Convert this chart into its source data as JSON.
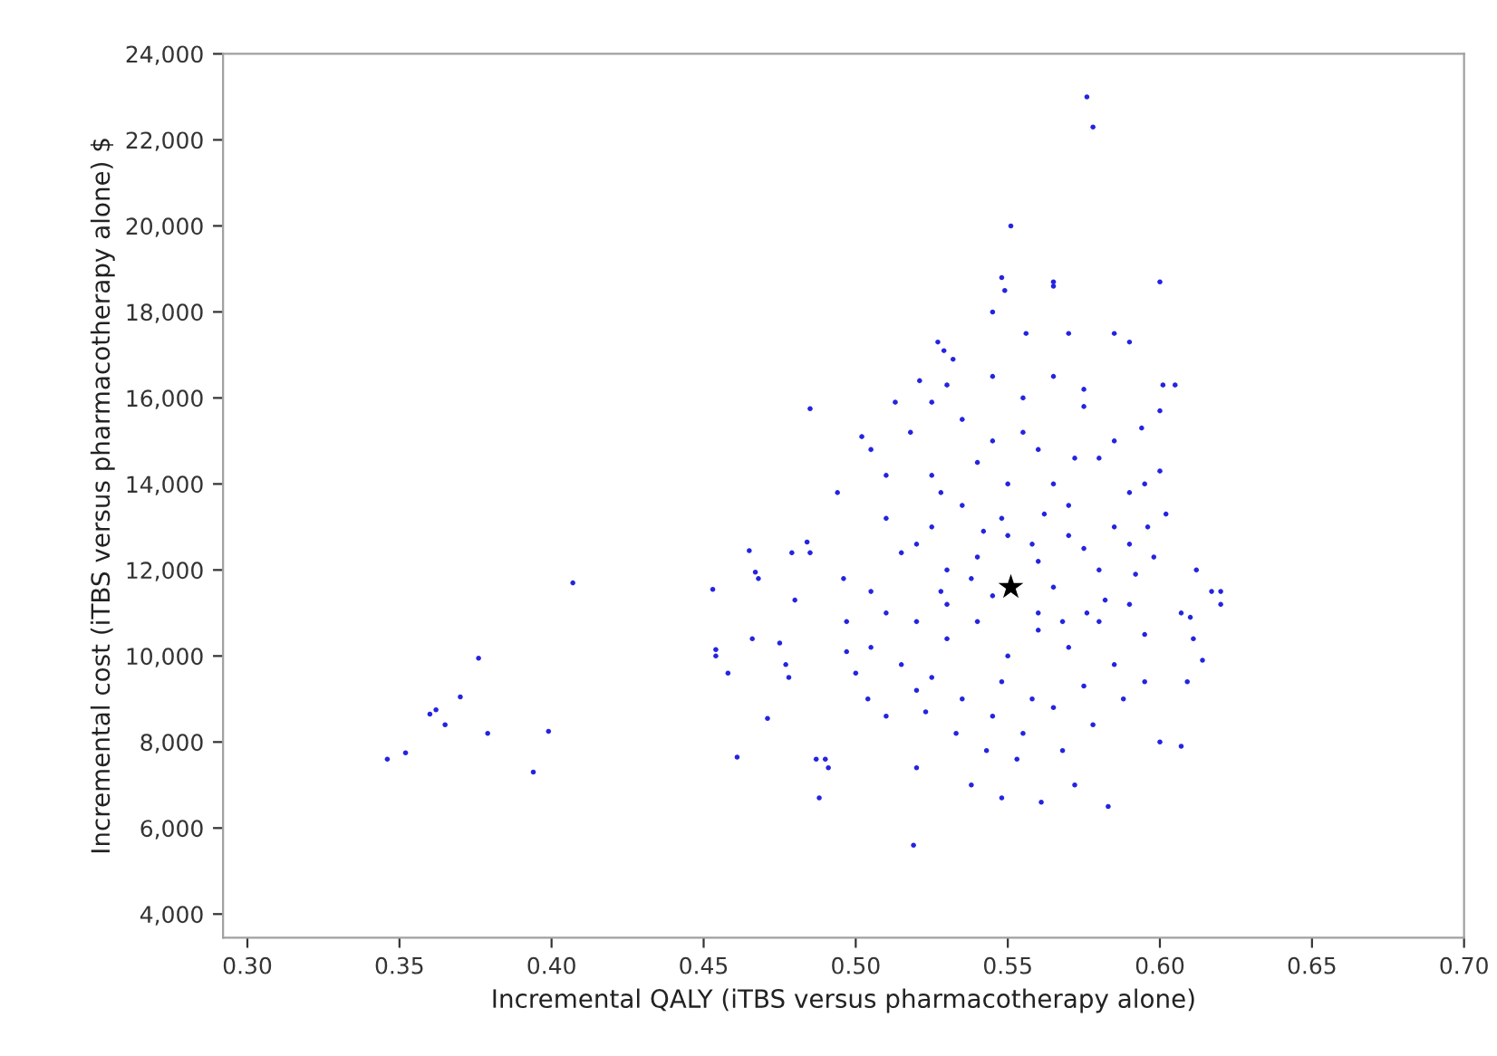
{
  "chart_data": {
    "type": "scatter",
    "xlabel": "Incremental QALY (iTBS versus pharmacotherapy alone)",
    "ylabel": "Incremental cost (iTBS versus pharmacotherapy alone) $",
    "xlim": [
      0.292,
      0.7
    ],
    "ylim": [
      3450,
      24000
    ],
    "xticks": [
      {
        "value": 0.3,
        "label": "0.30"
      },
      {
        "value": 0.35,
        "label": "0.35"
      },
      {
        "value": 0.4,
        "label": "0.40"
      },
      {
        "value": 0.45,
        "label": "0.45"
      },
      {
        "value": 0.5,
        "label": "0.50"
      },
      {
        "value": 0.55,
        "label": "0.55"
      },
      {
        "value": 0.6,
        "label": "0.60"
      },
      {
        "value": 0.65,
        "label": "0.65"
      },
      {
        "value": 0.7,
        "label": "0.70"
      }
    ],
    "yticks": [
      {
        "value": 4000,
        "label": "4,000"
      },
      {
        "value": 6000,
        "label": "6,000"
      },
      {
        "value": 8000,
        "label": "8,000"
      },
      {
        "value": 10000,
        "label": "10,000"
      },
      {
        "value": 12000,
        "label": "12,000"
      },
      {
        "value": 14000,
        "label": "14,000"
      },
      {
        "value": 16000,
        "label": "16,000"
      },
      {
        "value": 18000,
        "label": "18,000"
      },
      {
        "value": 20000,
        "label": "20,000"
      },
      {
        "value": 22000,
        "label": "22,000"
      },
      {
        "value": 24000,
        "label": "24,000"
      }
    ],
    "grid": false,
    "legend": false,
    "series": [
      {
        "color": "#2424e0",
        "marker": "circle",
        "x": [
          0.346,
          0.352,
          0.36,
          0.362,
          0.365,
          0.37,
          0.376,
          0.379,
          0.394,
          0.399,
          0.407,
          0.453,
          0.454,
          0.454,
          0.458,
          0.461,
          0.465,
          0.467,
          0.468,
          0.466,
          0.471,
          0.475,
          0.477,
          0.479,
          0.478,
          0.48,
          0.484,
          0.485,
          0.485,
          0.487,
          0.488,
          0.49,
          0.491,
          0.494,
          0.496,
          0.497,
          0.502,
          0.504,
          0.51,
          0.513,
          0.519,
          0.521,
          0.52,
          0.527,
          0.529,
          0.525,
          0.545,
          0.548,
          0.549,
          0.551,
          0.565,
          0.565,
          0.57,
          0.576,
          0.578,
          0.6,
          0.601,
          0.6,
          0.605,
          0.612,
          0.617,
          0.62,
          0.62,
          0.607,
          0.61,
          0.611,
          0.614,
          0.609,
          0.607,
          0.6,
          0.583,
          0.561,
          0.548,
          0.538,
          0.572,
          0.59,
          0.585,
          0.556,
          0.532,
          0.594,
          0.6,
          0.602,
          0.596,
          0.52,
          0.525,
          0.53,
          0.535,
          0.54,
          0.545,
          0.55,
          0.555,
          0.56,
          0.565,
          0.57,
          0.575,
          0.58,
          0.585,
          0.59,
          0.58,
          0.57,
          0.56,
          0.55,
          0.54,
          0.53,
          0.52,
          0.51,
          0.505,
          0.515,
          0.525,
          0.535,
          0.545,
          0.555,
          0.565,
          0.575,
          0.585,
          0.595,
          0.59,
          0.58,
          0.57,
          0.56,
          0.55,
          0.54,
          0.53,
          0.52,
          0.51,
          0.5,
          0.497,
          0.505,
          0.515,
          0.525,
          0.535,
          0.545,
          0.555,
          0.565,
          0.575,
          0.585,
          0.595,
          0.59,
          0.575,
          0.565,
          0.56,
          0.545,
          0.538,
          0.528,
          0.548,
          0.558,
          0.568,
          0.553,
          0.543,
          0.533,
          0.523,
          0.578,
          0.588,
          0.595,
          0.51,
          0.505,
          0.518,
          0.53,
          0.548,
          0.562,
          0.572,
          0.582,
          0.592,
          0.598,
          0.542,
          0.528,
          0.558,
          0.568,
          0.576
        ],
        "values": [
          7600,
          7750,
          8650,
          8750,
          8400,
          9050,
          9950,
          8200,
          7300,
          8250,
          11700,
          11550,
          10150,
          10000,
          9600,
          7650,
          12450,
          11950,
          11800,
          10400,
          8550,
          10300,
          9800,
          12400,
          9500,
          11300,
          12650,
          12400,
          15750,
          7600,
          6700,
          7600,
          7400,
          13800,
          11800,
          10800,
          15100,
          9000,
          14200,
          15900,
          5600,
          16400,
          7400,
          17300,
          17100,
          15900,
          18000,
          18800,
          18500,
          20000,
          18700,
          18600,
          17500,
          23000,
          22300,
          18700,
          16300,
          15700,
          16300,
          12000,
          11500,
          11500,
          11200,
          11000,
          10900,
          10400,
          9900,
          9400,
          7900,
          8000,
          6500,
          6600,
          6700,
          7000,
          7000,
          17300,
          17500,
          17500,
          16900,
          15300,
          14300,
          13300,
          13000,
          12600,
          13000,
          12000,
          13500,
          14500,
          15000,
          14000,
          15200,
          14800,
          14000,
          13500,
          15800,
          14600,
          13000,
          12600,
          12000,
          12800,
          12200,
          12800,
          12300,
          11200,
          10800,
          11000,
          10200,
          9800,
          9500,
          9000,
          8600,
          8200,
          8800,
          9300,
          9800,
          10500,
          11200,
          10800,
          10200,
          10600,
          10000,
          10800,
          10400,
          9200,
          8600,
          9600,
          10100,
          11500,
          12400,
          14200,
          15500,
          16500,
          16000,
          16500,
          16200,
          15000,
          14000,
          13800,
          12500,
          11600,
          11000,
          11400,
          11800,
          11500,
          9400,
          9000,
          7800,
          7600,
          7800,
          8200,
          8700,
          8400,
          9000,
          9400,
          13200,
          14800,
          15200,
          16300,
          13200,
          13300,
          14600,
          11300,
          11900,
          12300,
          12900,
          13800,
          12600,
          10800,
          11000
        ]
      },
      {
        "color": "#000000",
        "marker": "star",
        "x": [
          0.551
        ],
        "values": [
          11600
        ]
      }
    ]
  }
}
